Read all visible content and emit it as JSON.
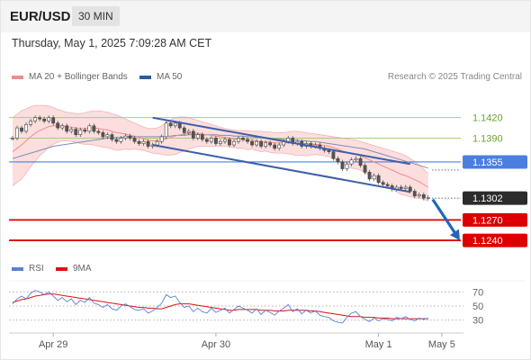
{
  "header": {
    "pair": "EUR/USD",
    "timeframe": "30 MIN"
  },
  "datetime": "Thursday, May 1, 2025 7:09:28 AM CET",
  "credit": "Research © 2025 Trading Central",
  "colors": {
    "price": "#555555",
    "ma20": "#f08c8c",
    "bands": "#fbd3d3",
    "ma50": "#7a8fb8",
    "channel": "#3e5fa8",
    "resistance": "#9ccc60",
    "pivot": "#4a7fe0",
    "support": "#dd0000",
    "forecast": "#2266bb",
    "rsi": "#5b7fd6",
    "rsi_ma": "#e01010"
  },
  "chart_data": [
    {
      "type": "line",
      "title": "",
      "legend": [
        {
          "name": "MA 20 + Bollinger Bands",
          "color": "#f08c8c"
        },
        {
          "name": "MA 50",
          "color": "#2e5aa0"
        }
      ],
      "legend_position": "top-left",
      "grid": false,
      "xlabel": "",
      "ylabel": "",
      "x_ticks": [
        "Apr 29",
        "Apr 30",
        "May 1",
        "May 5"
      ],
      "ylim": [
        1.1215,
        1.145
      ],
      "price": [
        1.139,
        1.1405,
        1.14,
        1.141,
        1.1415,
        1.142,
        1.1418,
        1.1415,
        1.142,
        1.1412,
        1.1405,
        1.1408,
        1.14,
        1.1403,
        1.1395,
        1.1402,
        1.14,
        1.1408,
        1.14,
        1.1398,
        1.1392,
        1.1395,
        1.1388,
        1.1385,
        1.139,
        1.1393,
        1.139,
        1.1385,
        1.1382,
        1.1385,
        1.1378,
        1.138,
        1.1385,
        1.1392,
        1.1412,
        1.1408,
        1.1412,
        1.1405,
        1.1398,
        1.14,
        1.139,
        1.1395,
        1.1388,
        1.1385,
        1.139,
        1.1382,
        1.1385,
        1.1388,
        1.138,
        1.1385,
        1.139,
        1.1388,
        1.1385,
        1.138,
        1.1385,
        1.1378,
        1.1383,
        1.138,
        1.1375,
        1.138,
        1.1385,
        1.139,
        1.1382,
        1.1385,
        1.1378,
        1.1382,
        1.1378,
        1.138,
        1.1375,
        1.1372,
        1.137,
        1.136,
        1.1355,
        1.1345,
        1.1352,
        1.1358,
        1.136,
        1.135,
        1.134,
        1.133,
        1.1335,
        1.1325,
        1.1322,
        1.132,
        1.1315,
        1.1318,
        1.1316,
        1.1318,
        1.1312,
        1.1305,
        1.1307,
        1.1302,
        1.1303
      ],
      "ma20": [
        1.137,
        1.1375,
        1.138,
        1.1386,
        1.1392,
        1.1397,
        1.1401,
        1.1404,
        1.1407,
        1.1408,
        1.1408,
        1.1408,
        1.1407,
        1.1406,
        1.1405,
        1.1404,
        1.1404,
        1.1405,
        1.1405,
        1.1404,
        1.1403,
        1.1402,
        1.14,
        1.1398,
        1.1397,
        1.1396,
        1.1394,
        1.1393,
        1.1391,
        1.1389,
        1.1387,
        1.1386,
        1.1386,
        1.1387,
        1.1389,
        1.1391,
        1.1393,
        1.1395,
        1.1396,
        1.1397,
        1.1397,
        1.1397,
        1.1396,
        1.1395,
        1.1394,
        1.1393,
        1.1392,
        1.1391,
        1.139,
        1.1389,
        1.1388,
        1.1388,
        1.1387,
        1.1387,
        1.1386,
        1.1385,
        1.1385,
        1.1384,
        1.1383,
        1.1383,
        1.1383,
        1.1383,
        1.1383,
        1.1382,
        1.1382,
        1.1381,
        1.1381,
        1.1381,
        1.138,
        1.1379,
        1.1378,
        1.1376,
        1.1374,
        1.1371,
        1.1369,
        1.1367,
        1.1366,
        1.1364,
        1.1361,
        1.1358,
        1.1355,
        1.1352,
        1.1349,
        1.1346,
        1.1343,
        1.134,
        1.1337,
        1.1335,
        1.1332,
        1.1329,
        1.1326,
        1.1322,
        1.1318
      ],
      "bb_upper": [
        1.142,
        1.1425,
        1.143,
        1.1433,
        1.1436,
        1.1438,
        1.1438,
        1.1438,
        1.1437,
        1.1435,
        1.1432,
        1.143,
        1.1428,
        1.1427,
        1.1426,
        1.1426,
        1.1427,
        1.1429,
        1.143,
        1.143,
        1.1429,
        1.1428,
        1.1426,
        1.1424,
        1.1421,
        1.1418,
        1.1415,
        1.1412,
        1.1409,
        1.1406,
        1.1404,
        1.1404,
        1.1405,
        1.1408,
        1.1413,
        1.1417,
        1.142,
        1.1421,
        1.1421,
        1.142,
        1.1418,
        1.1416,
        1.1414,
        1.1412,
        1.141,
        1.1408,
        1.1406,
        1.1404,
        1.1403,
        1.1402,
        1.1401,
        1.1401,
        1.1401,
        1.14,
        1.14,
        1.14,
        1.1399,
        1.1399,
        1.1398,
        1.1398,
        1.1398,
        1.1399,
        1.14,
        1.14,
        1.1399,
        1.1398,
        1.1397,
        1.1396,
        1.1395,
        1.1394,
        1.1393,
        1.1392,
        1.1391,
        1.139,
        1.1389,
        1.1388,
        1.1387,
        1.1385,
        1.1383,
        1.1381,
        1.1379,
        1.1377,
        1.1375,
        1.1373,
        1.1371,
        1.1369,
        1.1367,
        1.1364,
        1.136,
        1.1356,
        1.135,
        1.1344,
        1.1338
      ],
      "bb_lower": [
        1.132,
        1.1325,
        1.133,
        1.1339,
        1.1348,
        1.1356,
        1.1364,
        1.137,
        1.1377,
        1.1381,
        1.1384,
        1.1386,
        1.1386,
        1.1385,
        1.1384,
        1.1382,
        1.1381,
        1.1381,
        1.138,
        1.1378,
        1.1377,
        1.1376,
        1.1374,
        1.1372,
        1.1373,
        1.1374,
        1.1373,
        1.1374,
        1.1373,
        1.1372,
        1.137,
        1.1368,
        1.1367,
        1.1366,
        1.1365,
        1.1365,
        1.1366,
        1.1369,
        1.1371,
        1.1374,
        1.1376,
        1.1378,
        1.1378,
        1.1378,
        1.1378,
        1.1378,
        1.1378,
        1.1378,
        1.1377,
        1.1376,
        1.1375,
        1.1375,
        1.1373,
        1.1374,
        1.1372,
        1.137,
        1.1371,
        1.1369,
        1.1368,
        1.1368,
        1.1368,
        1.1367,
        1.1366,
        1.1364,
        1.1365,
        1.1364,
        1.1365,
        1.1366,
        1.1365,
        1.1364,
        1.1363,
        1.136,
        1.1357,
        1.1352,
        1.1349,
        1.1346,
        1.1345,
        1.1343,
        1.1339,
        1.1335,
        1.1331,
        1.1327,
        1.1323,
        1.1319,
        1.1315,
        1.1311,
        1.1307,
        1.1306,
        1.1304,
        1.1302,
        1.1302,
        1.13,
        1.1298
      ],
      "ma50": [
        1.136,
        1.1362,
        1.1364,
        1.1366,
        1.1368,
        1.137,
        1.1372,
        1.1374,
        1.1376,
        1.1378,
        1.1379,
        1.138,
        1.1381,
        1.1382,
        1.1383,
        1.1384,
        1.1385,
        1.1386,
        1.1387,
        1.1388,
        1.1389,
        1.139,
        1.139,
        1.1391,
        1.1391,
        1.1392,
        1.1392,
        1.1392,
        1.1392,
        1.1392,
        1.1392,
        1.1392,
        1.1392,
        1.1392,
        1.1393,
        1.1393,
        1.1394,
        1.1394,
        1.1394,
        1.1395,
        1.1395,
        1.1395,
        1.1395,
        1.1395,
        1.1395,
        1.1395,
        1.1394,
        1.1394,
        1.1394,
        1.1393,
        1.1393,
        1.1393,
        1.1392,
        1.1392,
        1.1391,
        1.1391,
        1.139,
        1.139,
        1.1389,
        1.1389,
        1.1388,
        1.1388,
        1.1387,
        1.1387,
        1.1386,
        1.1386,
        1.1385,
        1.1385,
        1.1384,
        1.1383,
        1.1382,
        1.1381,
        1.138,
        1.1379,
        1.1378,
        1.1377,
        1.1376,
        1.1375,
        1.1374,
        1.1372,
        1.137,
        1.1368,
        1.1366,
        1.1364,
        1.1362,
        1.136,
        1.1358,
        1.1356,
        1.1354,
        1.1352,
        1.135,
        1.1348,
        1.1346
      ],
      "channel_upper": [
        [
          31,
          1.142
        ],
        [
          88,
          1.1352
        ]
      ],
      "channel_lower": [
        [
          31,
          1.138
        ],
        [
          88,
          1.1311
        ]
      ],
      "forecast_arrow": [
        [
          93,
          1.13
        ],
        [
          99,
          1.124
        ]
      ],
      "resistance_levels": [
        1.142,
        1.139
      ],
      "pivot_level": 1.1355,
      "current_price": 1.1302,
      "support_levels": [
        1.127,
        1.124
      ],
      "price_labels": [
        "1.1420",
        "1.1390",
        "1.1355",
        "1.1302",
        "1.1270",
        "1.1240"
      ]
    },
    {
      "type": "line",
      "title": "",
      "legend": [
        {
          "name": "RSI",
          "color": "#5b7fd6"
        },
        {
          "name": "9MA",
          "color": "#e01010"
        }
      ],
      "legend_position": "top-left",
      "ylim": [
        22,
        78
      ],
      "y_ticks": [
        "70",
        "50",
        "30"
      ],
      "rsi": [
        53,
        60,
        64,
        60,
        68,
        72,
        70,
        66,
        70,
        64,
        58,
        62,
        56,
        60,
        52,
        58,
        55,
        62,
        54,
        52,
        48,
        52,
        46,
        44,
        50,
        53,
        49,
        45,
        44,
        46,
        40,
        43,
        48,
        54,
        66,
        62,
        64,
        55,
        48,
        50,
        42,
        47,
        42,
        40,
        47,
        41,
        44,
        47,
        40,
        45,
        50,
        47,
        44,
        40,
        46,
        38,
        44,
        41,
        37,
        43,
        47,
        52,
        42,
        46,
        39,
        44,
        40,
        43,
        37,
        35,
        34,
        29,
        27,
        26,
        34,
        40,
        42,
        35,
        31,
        28,
        33,
        29,
        32,
        31,
        29,
        34,
        32,
        35,
        31,
        29,
        33,
        31,
        33
      ],
      "rsi_ma": [
        55,
        57,
        59,
        60,
        62,
        64,
        65,
        66,
        67,
        67,
        66,
        65,
        64,
        63,
        62,
        61,
        60,
        59,
        58,
        57,
        56,
        55,
        54,
        53,
        52,
        51,
        50,
        49,
        48,
        48,
        47,
        47,
        46,
        46,
        48,
        50,
        52,
        53,
        53,
        53,
        52,
        51,
        50,
        49,
        48,
        47,
        46,
        45,
        44,
        44,
        45,
        45,
        45,
        45,
        45,
        44,
        44,
        44,
        43,
        43,
        43,
        44,
        44,
        44,
        44,
        44,
        43,
        43,
        42,
        41,
        40,
        39,
        38,
        37,
        36,
        35,
        35,
        35,
        34,
        34,
        34,
        33,
        33,
        33,
        32,
        32,
        32,
        32,
        32,
        32,
        32,
        32,
        32
      ]
    }
  ]
}
